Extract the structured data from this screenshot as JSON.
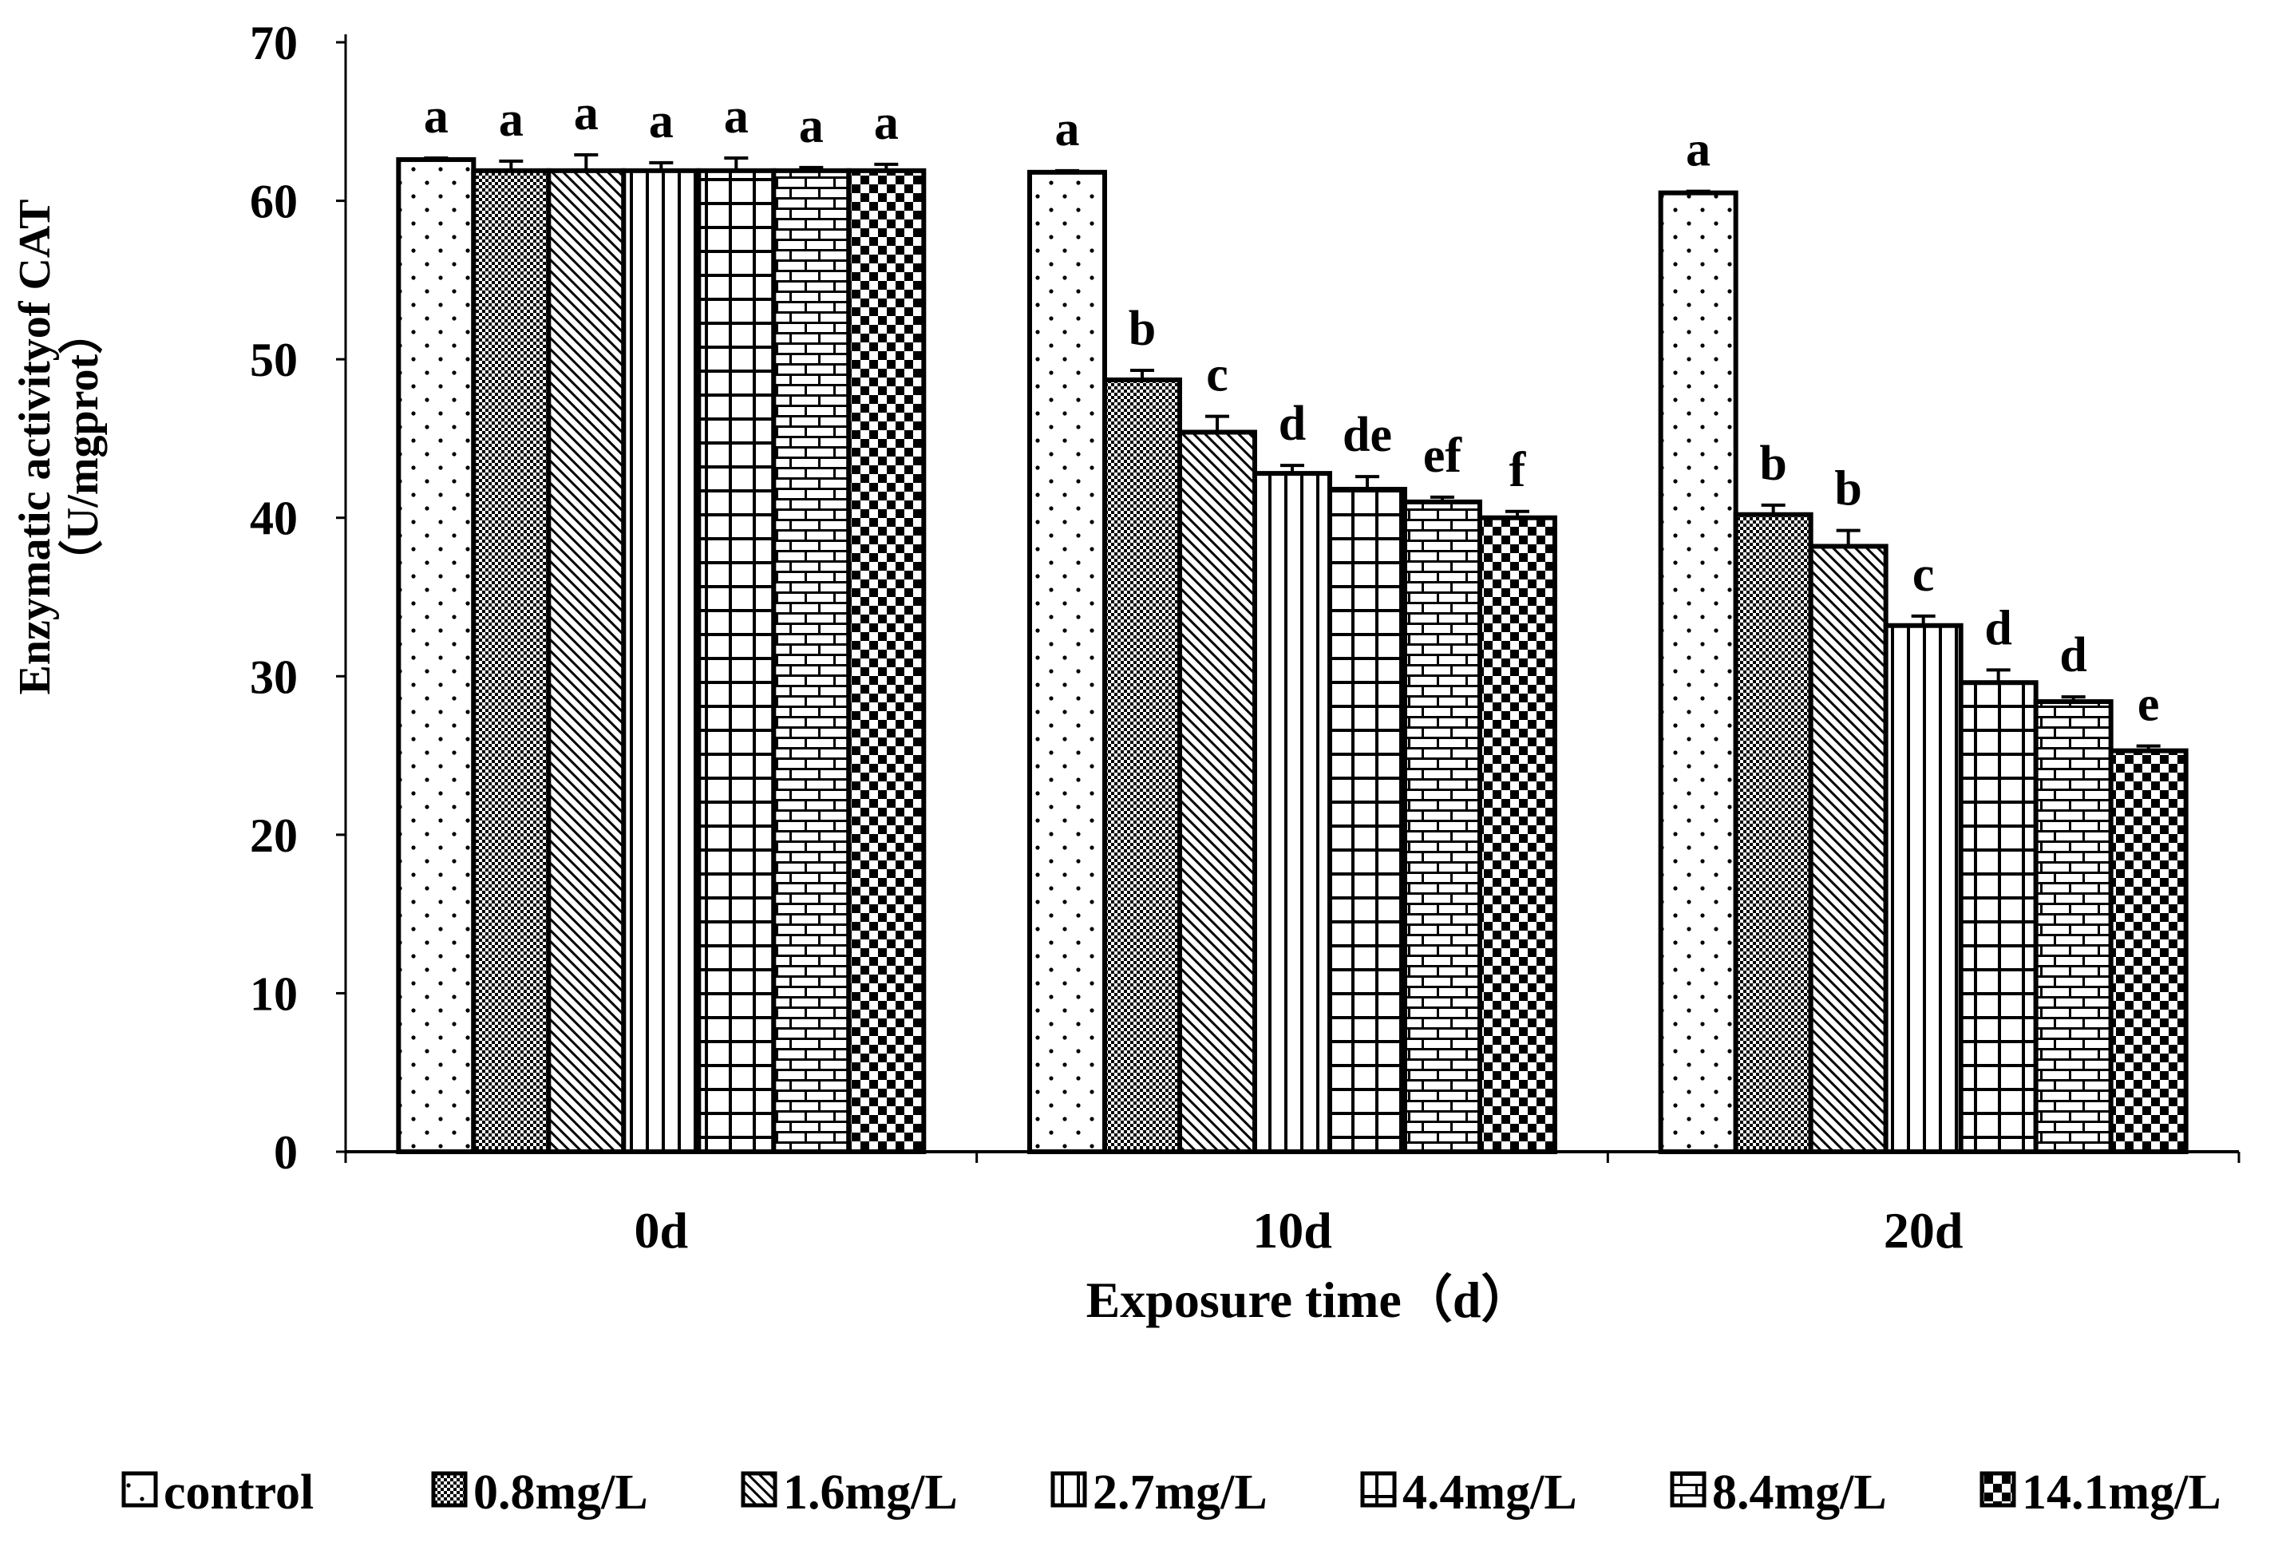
{
  "chart_data": {
    "type": "bar",
    "title": "",
    "xlabel": "Exposure time（d）",
    "ylabel_line1": "Enzymatic activityof CAT",
    "ylabel_line2": "（U/mgprot）",
    "ylim": [
      0,
      70
    ],
    "yticks": [
      "0",
      "10",
      "20",
      "30",
      "40",
      "50",
      "60",
      "70"
    ],
    "categories": [
      "0d",
      "10d",
      "20d"
    ],
    "legend_position": "bottom",
    "series": [
      {
        "name": "control",
        "pattern": "dots",
        "values": [
          62.6,
          61.8,
          60.5
        ],
        "errors": [
          0.1,
          0.1,
          0.1
        ],
        "letters": [
          "a",
          "a",
          "a"
        ]
      },
      {
        "name": "0.8mg/L",
        "pattern": "checker",
        "values": [
          61.9,
          48.7,
          40.2
        ],
        "errors": [
          0.6,
          0.6,
          0.6
        ],
        "letters": [
          "a",
          "b",
          "b"
        ]
      },
      {
        "name": "1.6mg/L",
        "pattern": "diagonal",
        "values": [
          61.9,
          45.4,
          38.2
        ],
        "errors": [
          1.0,
          1.0,
          1.0
        ],
        "letters": [
          "a",
          "c",
          "b"
        ]
      },
      {
        "name": "2.7mg/L",
        "pattern": "vertical",
        "values": [
          61.9,
          42.8,
          33.2
        ],
        "errors": [
          0.5,
          0.5,
          0.6
        ],
        "letters": [
          "a",
          "d",
          "c"
        ]
      },
      {
        "name": "4.4mg/L",
        "pattern": "grid",
        "values": [
          61.9,
          41.8,
          29.6
        ],
        "errors": [
          0.8,
          0.8,
          0.8
        ],
        "letters": [
          "a",
          "de",
          "d"
        ]
      },
      {
        "name": "8.4mg/L",
        "pattern": "brick",
        "values": [
          61.9,
          41.0,
          28.4
        ],
        "errors": [
          0.2,
          0.3,
          0.3
        ],
        "letters": [
          "a",
          "ef",
          "d"
        ]
      },
      {
        "name": "14.1mg/L",
        "pattern": "bigcheck",
        "values": [
          61.9,
          40.0,
          25.3
        ],
        "errors": [
          0.4,
          0.4,
          0.3
        ],
        "letters": [
          "a",
          "f",
          "e"
        ]
      }
    ]
  }
}
